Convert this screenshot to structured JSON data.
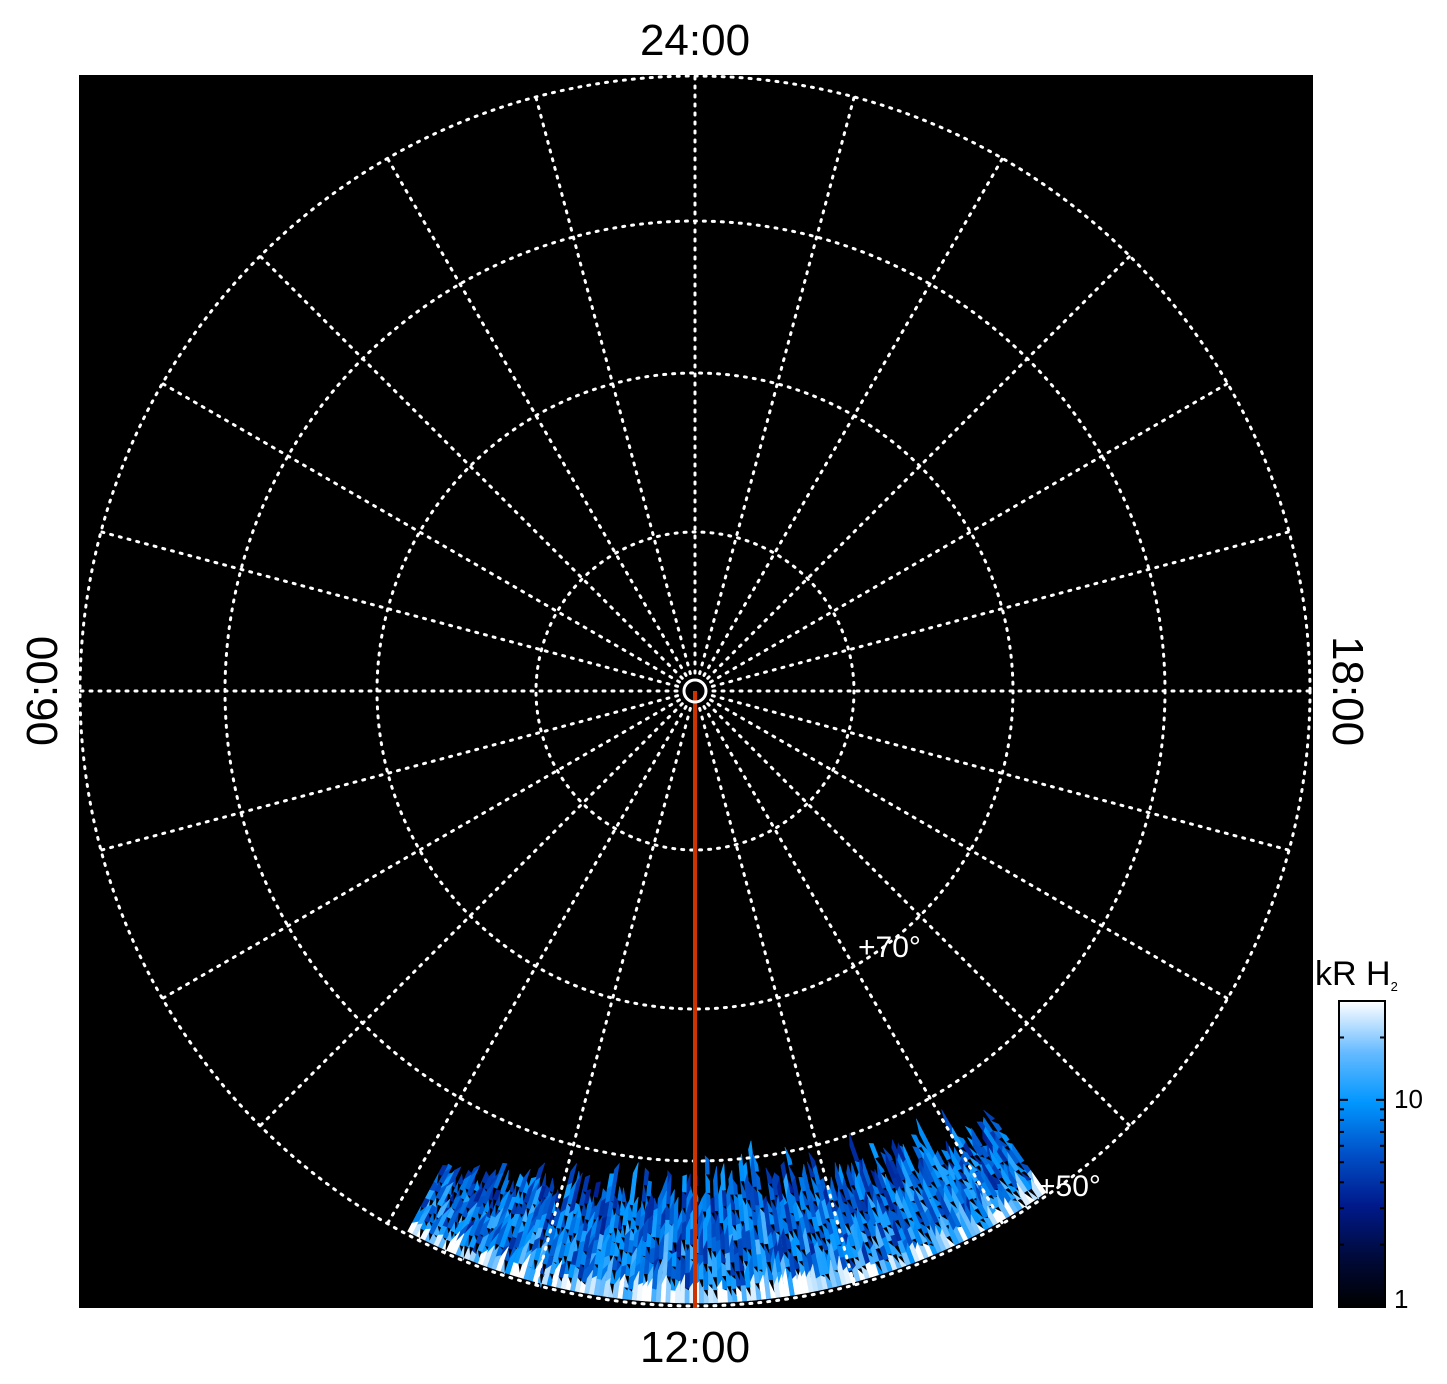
{
  "chart_data": {
    "type": "heatmap",
    "projection": "polar (north pole view, local time)",
    "local_time_labels": {
      "top": "24:00",
      "bottom": "12:00",
      "left": "06:00",
      "right": "18:00"
    },
    "latitude_circles_deg": [
      80,
      70,
      60,
      50
    ],
    "latitude_labels": [
      "+70°",
      "+50°"
    ],
    "meridian_spacing_hours": 1,
    "highlight_meridian": {
      "local_time": "12:00",
      "color": "#cc3300"
    },
    "emission_region": {
      "local_time_range": [
        "~09:40",
        "~13:50"
      ],
      "latitude_range_deg": [
        50,
        62
      ]
    },
    "colorbar": {
      "label": "kR H",
      "label_subscript": "2",
      "scale": "log",
      "range": [
        1,
        30
      ],
      "ticks": [
        {
          "value": 1,
          "label": "1"
        },
        {
          "value": 10,
          "label": "10"
        }
      ],
      "colors": [
        "#000000",
        "#000a3c",
        "#001a8c",
        "#0050c8",
        "#0096ff",
        "#66bbff",
        "#ffffff"
      ]
    },
    "background": "#000000",
    "grid_color": "#ffffff"
  }
}
